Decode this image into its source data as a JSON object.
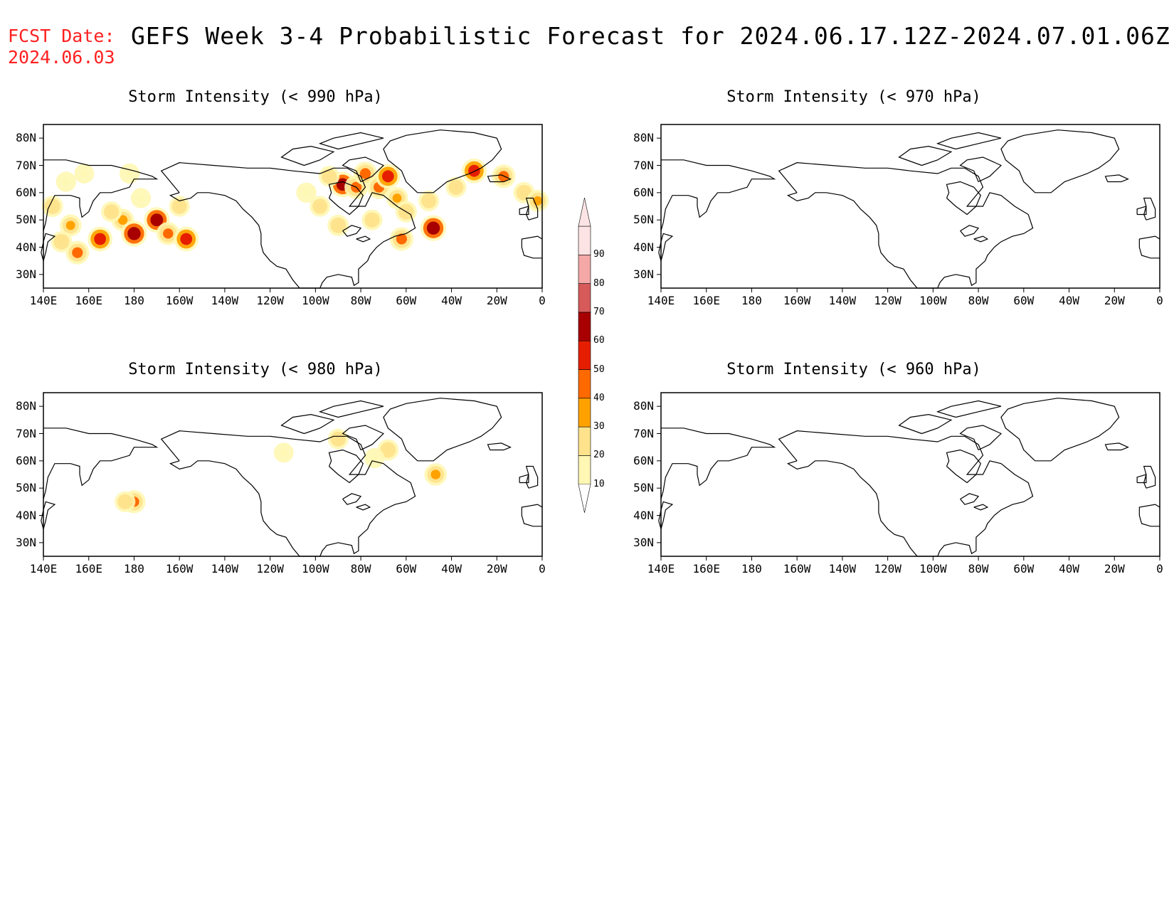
{
  "header": {
    "fcst_label": "FCST Date:",
    "fcst_date": "2024.06.03",
    "title": "GEFS Week 3-4 Probabilistic Forecast for 2024.06.17.12Z-2024.07.01.06Z"
  },
  "lat_labels": [
    "80N",
    "70N",
    "60N",
    "50N",
    "40N",
    "30N"
  ],
  "lon_labels": [
    "140E",
    "160E",
    "180",
    "160W",
    "140W",
    "120W",
    "100W",
    "80W",
    "60W",
    "40W",
    "20W",
    "0"
  ],
  "panels": [
    {
      "id": "p990",
      "title": "Storm Intensity (< 990 hPa)"
    },
    {
      "id": "p970",
      "title": "Storm Intensity (< 970 hPa)"
    },
    {
      "id": "p980",
      "title": "Storm Intensity (< 980 hPa)"
    },
    {
      "id": "p960",
      "title": "Storm Intensity (< 960 hPa)"
    }
  ],
  "colorbar": {
    "levels": [
      "10",
      "20",
      "30",
      "40",
      "50",
      "60",
      "70",
      "80",
      "90"
    ],
    "colors": [
      "#fff7b4",
      "#ffe38c",
      "#ffa200",
      "#ff6a00",
      "#e61e00",
      "#a80000",
      "#d65a5a",
      "#f4a8a8",
      "#fde4e4"
    ]
  },
  "probability_patches": {
    "p990": [
      {
        "lon": 150,
        "lat": 64,
        "p": 15
      },
      {
        "lon": 158,
        "lat": 67,
        "p": 12
      },
      {
        "lon": 144,
        "lat": 55,
        "p": 25
      },
      {
        "lon": 152,
        "lat": 48,
        "p": 30
      },
      {
        "lon": 155,
        "lat": 38,
        "p": 45
      },
      {
        "lon": 165,
        "lat": 43,
        "p": 55
      },
      {
        "lon": 175,
        "lat": 50,
        "p": 35
      },
      {
        "lon": 180,
        "lat": 45,
        "p": 65
      },
      {
        "lon": 190,
        "lat": 50,
        "p": 62
      },
      {
        "lon": 195,
        "lat": 45,
        "p": 40
      },
      {
        "lon": 203,
        "lat": 43,
        "p": 55
      },
      {
        "lon": 170,
        "lat": 53,
        "p": 20
      },
      {
        "lon": 183,
        "lat": 58,
        "p": 15
      },
      {
        "lon": 200,
        "lat": 55,
        "p": 20
      },
      {
        "lon": 178,
        "lat": 67,
        "p": 15
      },
      {
        "lon": 148,
        "lat": 42,
        "p": 25
      },
      {
        "lon": 256,
        "lat": 60,
        "p": 15
      },
      {
        "lon": 262,
        "lat": 55,
        "p": 20
      },
      {
        "lon": 270,
        "lat": 48,
        "p": 25
      },
      {
        "lon": 272,
        "lat": 63,
        "p": 60
      },
      {
        "lon": 278,
        "lat": 62,
        "p": 45
      },
      {
        "lon": 282,
        "lat": 67,
        "p": 45
      },
      {
        "lon": 288,
        "lat": 62,
        "p": 45
      },
      {
        "lon": 292,
        "lat": 66,
        "p": 55
      },
      {
        "lon": 296,
        "lat": 58,
        "p": 30
      },
      {
        "lon": 300,
        "lat": 53,
        "p": 25
      },
      {
        "lon": 298,
        "lat": 43,
        "p": 45
      },
      {
        "lon": 312,
        "lat": 47,
        "p": 65
      },
      {
        "lon": 310,
        "lat": 57,
        "p": 20
      },
      {
        "lon": 322,
        "lat": 62,
        "p": 20
      },
      {
        "lon": 330,
        "lat": 68,
        "p": 55
      },
      {
        "lon": 343,
        "lat": 66,
        "p": 45
      },
      {
        "lon": 352,
        "lat": 60,
        "p": 25
      },
      {
        "lon": 358,
        "lat": 57,
        "p": 30
      },
      {
        "lon": 285,
        "lat": 50,
        "p": 20
      },
      {
        "lon": 266,
        "lat": 66,
        "p": 20
      }
    ],
    "p980": [
      {
        "lon": 180,
        "lat": 45,
        "p": 40
      },
      {
        "lon": 176,
        "lat": 45,
        "p": 20
      },
      {
        "lon": 313,
        "lat": 55,
        "p": 35
      },
      {
        "lon": 270,
        "lat": 68,
        "p": 20
      },
      {
        "lon": 292,
        "lat": 64,
        "p": 25
      },
      {
        "lon": 286,
        "lat": 61,
        "p": 15
      },
      {
        "lon": 246,
        "lat": 63,
        "p": 12
      }
    ]
  }
}
